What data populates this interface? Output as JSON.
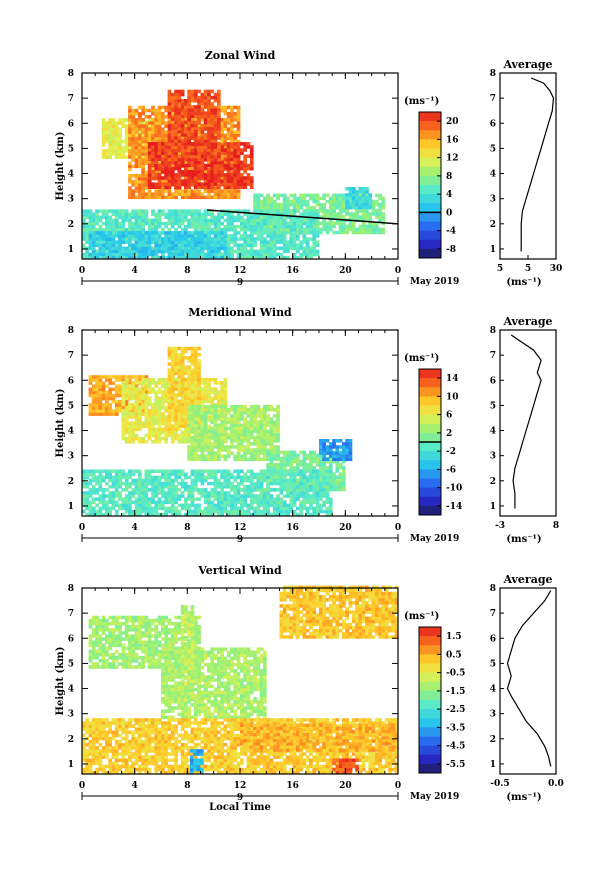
{
  "chart_data": [
    {
      "type": "heatmap",
      "title": "Zonal Wind",
      "xlabel": "",
      "ylabel": "Height (km)",
      "xlim": [
        0,
        24
      ],
      "ylim": [
        0.6,
        8
      ],
      "x_ticks": [
        "0",
        "4",
        "8",
        "12",
        "16",
        "20",
        "0"
      ],
      "y_ticks": [
        "1",
        "2",
        "3",
        "4",
        "5",
        "6",
        "7",
        "8"
      ],
      "date_day": "9",
      "date_month": "May 2019",
      "colorbar": {
        "unit": "(ms⁻¹)",
        "ticks": [
          "20",
          "16",
          "12",
          "8",
          "4",
          "0",
          "-4",
          "-8"
        ],
        "range": [
          -10,
          22
        ],
        "zero_line": 0
      },
      "regions": [
        {
          "x": [
            1.5,
            5.5
          ],
          "y": [
            4.6,
            6.1
          ],
          "value": 12
        },
        {
          "x": [
            3.5,
            12.0
          ],
          "y": [
            3.0,
            6.6
          ],
          "value": 17
        },
        {
          "x": [
            5.0,
            13.0
          ],
          "y": [
            3.4,
            5.2
          ],
          "value": 21
        },
        {
          "x": [
            6.5,
            10.5
          ],
          "y": [
            4.5,
            7.3
          ],
          "value": 20
        },
        {
          "x": [
            13.0,
            23.0
          ],
          "y": [
            1.6,
            3.2
          ],
          "value": 7
        },
        {
          "x": [
            0.0,
            18.0
          ],
          "y": [
            0.6,
            2.5
          ],
          "value": 5
        },
        {
          "x": [
            0.5,
            11.0
          ],
          "y": [
            0.6,
            1.6
          ],
          "value": 2
        },
        {
          "x": [
            20.0,
            22.0
          ],
          "y": [
            2.6,
            3.4
          ],
          "value": 3
        }
      ],
      "contour_line": {
        "x": [
          9.5,
          24
        ],
        "y": [
          2.55,
          2.0
        ]
      },
      "average": {
        "title": "Average",
        "x_label": "(ms⁻¹)",
        "x_ticks": [
          "5",
          "5",
          "30"
        ],
        "xlim": [
          -15,
          30
        ],
        "profile": [
          [
            0.9,
            2
          ],
          [
            1.5,
            2
          ],
          [
            2.0,
            2
          ],
          [
            2.5,
            3
          ],
          [
            3.0,
            6
          ],
          [
            3.5,
            9
          ],
          [
            4.0,
            12
          ],
          [
            4.5,
            15
          ],
          [
            5.0,
            18
          ],
          [
            5.5,
            21
          ],
          [
            6.0,
            24
          ],
          [
            6.5,
            27
          ],
          [
            7.0,
            28
          ],
          [
            7.3,
            25
          ],
          [
            7.6,
            20
          ],
          [
            7.8,
            10
          ]
        ]
      }
    },
    {
      "type": "heatmap",
      "title": "Meridional Wind",
      "xlabel": "",
      "ylabel": "Height (km)",
      "xlim": [
        0,
        24
      ],
      "ylim": [
        0.6,
        8
      ],
      "x_ticks": [
        "0",
        "4",
        "8",
        "12",
        "16",
        "20",
        "0"
      ],
      "y_ticks": [
        "1",
        "2",
        "3",
        "4",
        "5",
        "6",
        "7",
        "8"
      ],
      "date_day": "9",
      "date_month": "May 2019",
      "colorbar": {
        "unit": "(ms⁻¹)",
        "ticks": [
          "14",
          "10",
          "6",
          "2",
          "-2",
          "-6",
          "-10",
          "-14"
        ],
        "range": [
          -16,
          16
        ],
        "zero_line": 0
      },
      "regions": [
        {
          "x": [
            0.5,
            5.0
          ],
          "y": [
            4.6,
            6.1
          ],
          "value": 10
        },
        {
          "x": [
            3.0,
            11.0
          ],
          "y": [
            3.5,
            6.0
          ],
          "value": 6
        },
        {
          "x": [
            6.5,
            9.0
          ],
          "y": [
            4.0,
            7.3
          ],
          "value": 8
        },
        {
          "x": [
            8.0,
            15.0
          ],
          "y": [
            2.8,
            5.0
          ],
          "value": 3
        },
        {
          "x": [
            14.0,
            20.0
          ],
          "y": [
            1.6,
            3.2
          ],
          "value": 1
        },
        {
          "x": [
            0.0,
            19.0
          ],
          "y": [
            0.6,
            2.4
          ],
          "value": -1
        },
        {
          "x": [
            18.0,
            20.5
          ],
          "y": [
            2.8,
            3.6
          ],
          "value": -7
        }
      ],
      "contour_line": null,
      "average": {
        "title": "Average",
        "x_label": "(ms⁻¹)",
        "x_ticks": [
          "-3",
          "8"
        ],
        "xlim": [
          -5,
          10
        ],
        "profile": [
          [
            0.9,
            -1
          ],
          [
            1.5,
            -1
          ],
          [
            2.0,
            -1.5
          ],
          [
            2.5,
            -1
          ],
          [
            3.0,
            0
          ],
          [
            3.5,
            1
          ],
          [
            4.0,
            2
          ],
          [
            4.5,
            3
          ],
          [
            5.0,
            4
          ],
          [
            5.5,
            5
          ],
          [
            6.0,
            6
          ],
          [
            6.3,
            5
          ],
          [
            6.8,
            6
          ],
          [
            7.2,
            4
          ],
          [
            7.5,
            1
          ],
          [
            7.8,
            -2
          ]
        ]
      }
    },
    {
      "type": "heatmap",
      "title": "Vertical Wind",
      "xlabel": "Local Time",
      "ylabel": "Height (km)",
      "xlim": [
        0,
        24
      ],
      "ylim": [
        0.6,
        8
      ],
      "x_ticks": [
        "0",
        "4",
        "8",
        "12",
        "16",
        "20",
        "0"
      ],
      "y_ticks": [
        "1",
        "2",
        "3",
        "4",
        "5",
        "6",
        "7",
        "8"
      ],
      "date_day": "9",
      "date_month": "May 2019",
      "colorbar": {
        "unit": "(ms⁻¹)",
        "ticks": [
          "1.5",
          "0.5",
          "-0.5",
          "-1.5",
          "-2.5",
          "-3.5",
          "-4.5",
          "-5.5"
        ],
        "range": [
          -6,
          2
        ],
        "zero_line": null
      },
      "regions": [
        {
          "x": [
            0.5,
            9.0
          ],
          "y": [
            4.8,
            6.8
          ],
          "value": -1.3
        },
        {
          "x": [
            6.0,
            14.0
          ],
          "y": [
            2.8,
            5.6
          ],
          "value": -1.2
        },
        {
          "x": [
            7.5,
            8.5
          ],
          "y": [
            3.5,
            7.2
          ],
          "value": -1.0
        },
        {
          "x": [
            0.0,
            24.0
          ],
          "y": [
            0.6,
            2.8
          ],
          "value": 0.1
        },
        {
          "x": [
            12.0,
            24.0
          ],
          "y": [
            1.5,
            2.6
          ],
          "value": 0.4
        },
        {
          "x": [
            15.0,
            24.0
          ],
          "y": [
            6.0,
            8.0
          ],
          "value": 0.2
        },
        {
          "x": [
            19.0,
            21.0
          ],
          "y": [
            0.6,
            1.1
          ],
          "value": 1.4
        },
        {
          "x": [
            8.2,
            9.0
          ],
          "y": [
            0.6,
            1.5
          ],
          "value": -3.5
        }
      ],
      "contour_line": null,
      "average": {
        "title": "Average",
        "x_label": "(ms⁻¹)",
        "x_ticks": [
          "-0.5",
          "0.0"
        ],
        "xlim": [
          -0.7,
          0.05
        ],
        "profile": [
          [
            0.9,
            -0.02
          ],
          [
            1.3,
            -0.05
          ],
          [
            1.7,
            -0.1
          ],
          [
            2.2,
            -0.2
          ],
          [
            2.7,
            -0.35
          ],
          [
            3.2,
            -0.45
          ],
          [
            3.7,
            -0.55
          ],
          [
            4.0,
            -0.6
          ],
          [
            4.5,
            -0.55
          ],
          [
            5.0,
            -0.6
          ],
          [
            5.5,
            -0.55
          ],
          [
            6.0,
            -0.5
          ],
          [
            6.5,
            -0.4
          ],
          [
            7.0,
            -0.25
          ],
          [
            7.5,
            -0.1
          ],
          [
            7.9,
            -0.02
          ]
        ]
      }
    }
  ]
}
